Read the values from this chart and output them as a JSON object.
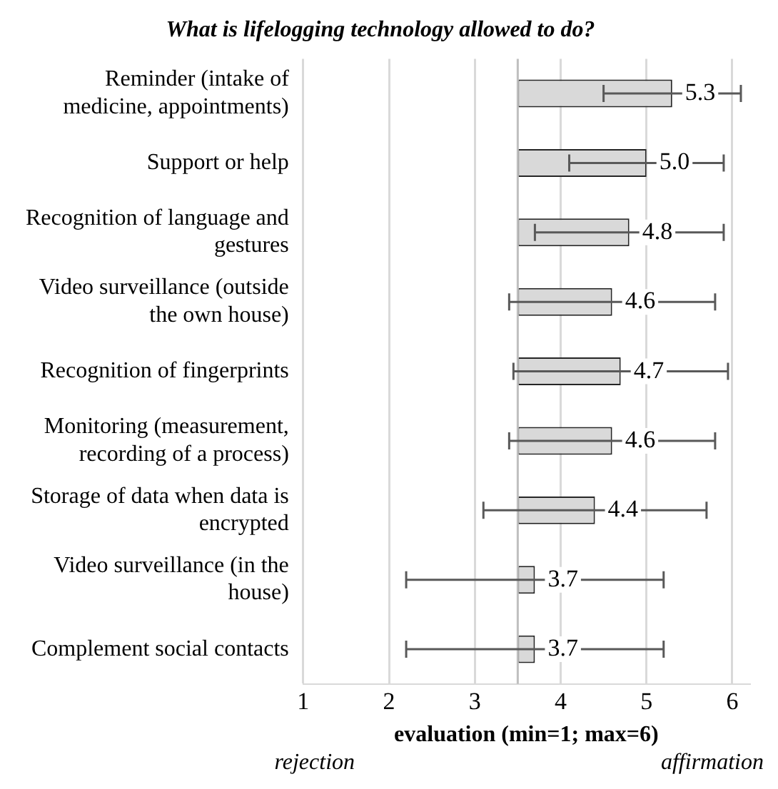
{
  "chart_data": {
    "type": "bar",
    "orientation": "horizontal",
    "title": "What is lifelogging technology allowed to do?",
    "categories": [
      "Reminder (intake of medicine, appointments)",
      "Support or help",
      "Recognition of language and gestures",
      "Video surveillance (outside the own house)",
      "Recognition of fingerprints",
      "Monitoring (measurement, recording of a process)",
      "Storage of data when data is encrypted",
      "Video surveillance (in the house)",
      "Complement social contacts"
    ],
    "base": [
      3.5,
      3.5,
      3.5,
      3.5,
      3.5,
      3.5,
      3.5,
      3.5,
      3.5
    ],
    "values": [
      1.8,
      1.5,
      1.3,
      1.1,
      1.2,
      1.1,
      0.9,
      0.2,
      0.2
    ],
    "value_labels": [
      "5.3",
      "5.0",
      "4.8",
      "4.6",
      "4.7",
      "4.6",
      "4.4",
      "3.7",
      "3.7"
    ],
    "errors": [
      0.8,
      0.9,
      1.1,
      1.2,
      1.25,
      1.2,
      1.3,
      1.5,
      1.5
    ],
    "color": "#d9d9d9",
    "xlabel": "evaluation (min=1; max=6)",
    "xlim": [
      1,
      6.2
    ],
    "xticks": [
      1,
      2,
      3,
      4,
      5,
      6
    ],
    "ref_lines": [
      {
        "axis": "x",
        "value": 3.5,
        "color": "#bfbfbf"
      }
    ],
    "annotations": [
      "rejection",
      "affirmation"
    ],
    "grid": "x",
    "legend": false
  }
}
